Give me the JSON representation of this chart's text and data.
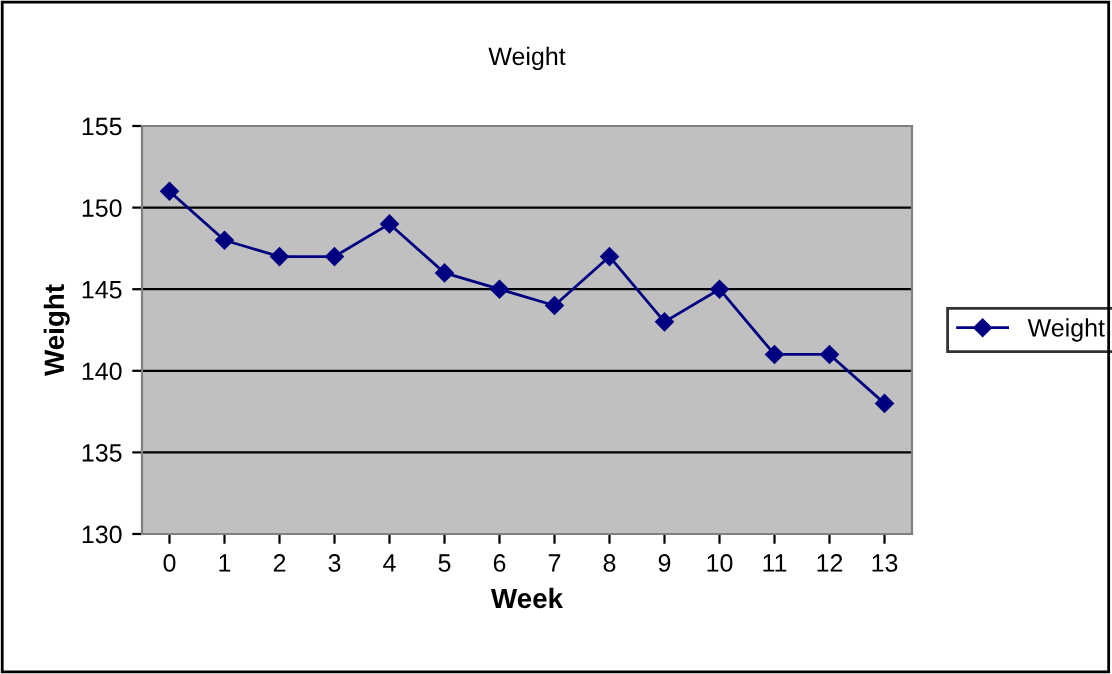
{
  "chart_data": {
    "type": "line",
    "title": "Weight",
    "xlabel": "Week",
    "ylabel": "Weight",
    "categories": [
      "0",
      "1",
      "2",
      "3",
      "4",
      "5",
      "6",
      "7",
      "8",
      "9",
      "10",
      "11",
      "12",
      "13"
    ],
    "series": [
      {
        "name": "Weight",
        "color": "#000080",
        "values": [
          151,
          148,
          147,
          147,
          149,
          146,
          145,
          144,
          147,
          143,
          145,
          141,
          141,
          138
        ]
      }
    ],
    "ylim": [
      130,
      155
    ],
    "yticks": [
      130,
      135,
      140,
      145,
      150,
      155
    ],
    "grid": "y",
    "legend": "right",
    "marker": "diamond",
    "line_style": "solid"
  }
}
